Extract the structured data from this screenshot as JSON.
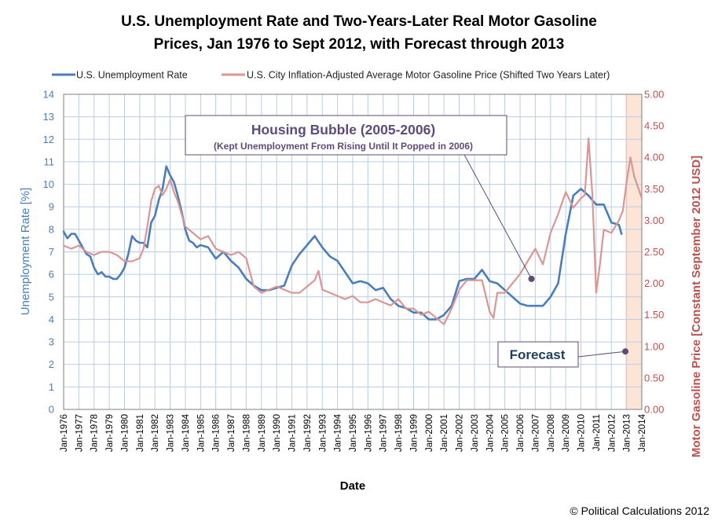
{
  "chart_data": {
    "type": "line",
    "title_lines": [
      "U.S. Unemployment Rate and Two-Years-Later Real Motor Gasoline",
      "Prices, Jan 1976 to Sept 2012, with Forecast through 2013"
    ],
    "xlabel": "Date",
    "ylabel_left": "Unemployment Rate [%]",
    "ylabel_right": "Motor Gasoline Price [Constant September 2012 USD]",
    "x_ticks": [
      "Jan-1976",
      "Jan-1977",
      "Jan-1978",
      "Jan-1979",
      "Jan-1980",
      "Jan-1981",
      "Jan-1982",
      "Jan-1983",
      "Jan-1984",
      "Jan-1985",
      "Jan-1986",
      "Jan-1987",
      "Jan-1988",
      "Jan-1989",
      "Jan-1990",
      "Jan-1991",
      "Jan-1992",
      "Jan-1993",
      "Jan-1994",
      "Jan-1995",
      "Jan-1996",
      "Jan-1997",
      "Jan-1998",
      "Jan-1999",
      "Jan-2000",
      "Jan-2001",
      "Jan-2002",
      "Jan-2003",
      "Jan-2004",
      "Jan-2005",
      "Jan-2006",
      "Jan-2007",
      "Jan-2008",
      "Jan-2009",
      "Jan-2010",
      "Jan-2011",
      "Jan-2012",
      "Jan-2013",
      "Jan-2014"
    ],
    "xlim": [
      1976,
      2014
    ],
    "y_left_ticks": [
      "0",
      "1",
      "2",
      "3",
      "4",
      "5",
      "6",
      "7",
      "8",
      "9",
      "10",
      "11",
      "12",
      "13",
      "14"
    ],
    "ylim_left": [
      0,
      14
    ],
    "y_right_ticks": [
      "0.00",
      "0.50",
      "1.00",
      "1.50",
      "2.00",
      "2.50",
      "3.00",
      "3.50",
      "4.00",
      "4.50",
      "5.00"
    ],
    "ylim_right": [
      0,
      5
    ],
    "grid": true,
    "legend_position": "top",
    "forecast_region": [
      2012.92,
      2014
    ],
    "series": [
      {
        "name": "U.S. Unemployment Rate",
        "axis": "left",
        "color": "#4a7ebb",
        "x": [
          1976.0,
          1976.25,
          1976.5,
          1976.75,
          1977.0,
          1977.25,
          1977.5,
          1977.75,
          1978.0,
          1978.25,
          1978.5,
          1978.75,
          1979.0,
          1979.25,
          1979.5,
          1979.75,
          1980.0,
          1980.25,
          1980.5,
          1980.75,
          1981.0,
          1981.25,
          1981.5,
          1981.75,
          1982.0,
          1982.25,
          1982.5,
          1982.75,
          1983.0,
          1983.25,
          1983.5,
          1983.75,
          1984.0,
          1984.25,
          1984.5,
          1984.75,
          1985.0,
          1985.5,
          1986.0,
          1986.5,
          1987.0,
          1987.5,
          1988.0,
          1988.5,
          1989.0,
          1989.5,
          1990.0,
          1990.5,
          1991.0,
          1991.5,
          1992.0,
          1992.5,
          1993.0,
          1993.5,
          1994.0,
          1994.5,
          1995.0,
          1995.5,
          1996.0,
          1996.5,
          1997.0,
          1997.5,
          1998.0,
          1998.5,
          1999.0,
          1999.5,
          2000.0,
          2000.5,
          2001.0,
          2001.5,
          2002.0,
          2002.5,
          2003.0,
          2003.5,
          2004.0,
          2004.5,
          2005.0,
          2005.5,
          2006.0,
          2006.5,
          2007.0,
          2007.5,
          2008.0,
          2008.5,
          2009.0,
          2009.5,
          2010.0,
          2010.5,
          2011.0,
          2011.5,
          2012.0,
          2012.5,
          2012.67
        ],
        "values": [
          7.9,
          7.6,
          7.8,
          7.8,
          7.5,
          7.2,
          6.9,
          6.8,
          6.3,
          6.0,
          6.1,
          5.9,
          5.9,
          5.8,
          5.8,
          6.0,
          6.3,
          6.9,
          7.7,
          7.5,
          7.4,
          7.4,
          7.2,
          8.3,
          8.6,
          9.3,
          9.8,
          10.8,
          10.4,
          10.1,
          9.5,
          8.8,
          8.0,
          7.5,
          7.4,
          7.2,
          7.3,
          7.2,
          6.7,
          7.0,
          6.6,
          6.3,
          5.8,
          5.5,
          5.3,
          5.3,
          5.4,
          5.5,
          6.4,
          6.9,
          7.3,
          7.7,
          7.2,
          6.8,
          6.6,
          6.1,
          5.6,
          5.7,
          5.6,
          5.3,
          5.4,
          4.9,
          4.6,
          4.5,
          4.3,
          4.3,
          4.0,
          4.0,
          4.2,
          4.6,
          5.7,
          5.8,
          5.8,
          6.2,
          5.7,
          5.6,
          5.3,
          5.0,
          4.7,
          4.6,
          4.6,
          4.6,
          5.0,
          5.6,
          7.8,
          9.5,
          9.8,
          9.5,
          9.1,
          9.1,
          8.3,
          8.2,
          7.8
        ]
      },
      {
        "name": "U.S. City Inflation-Adjusted  Average Motor Gasoline Price (Shifted Two Years Later)",
        "axis": "right",
        "color": "#d99694",
        "x": [
          1976.0,
          1976.5,
          1977.0,
          1977.5,
          1978.0,
          1978.5,
          1979.0,
          1979.5,
          1980.0,
          1980.5,
          1981.0,
          1981.25,
          1981.5,
          1981.75,
          1982.0,
          1982.25,
          1982.5,
          1982.75,
          1983.0,
          1983.25,
          1983.5,
          1983.75,
          1984.0,
          1984.5,
          1985.0,
          1985.5,
          1986.0,
          1986.5,
          1987.0,
          1987.5,
          1988.0,
          1988.5,
          1989.0,
          1989.5,
          1990.0,
          1990.5,
          1991.0,
          1991.5,
          1992.0,
          1992.5,
          1992.75,
          1993.0,
          1993.5,
          1994.0,
          1994.5,
          1995.0,
          1995.5,
          1996.0,
          1996.5,
          1997.0,
          1997.5,
          1998.0,
          1998.5,
          1999.0,
          1999.5,
          2000.0,
          2000.5,
          2001.0,
          2001.5,
          2002.0,
          2002.5,
          2003.0,
          2003.5,
          2004.0,
          2004.25,
          2004.5,
          2005.0,
          2005.5,
          2006.0,
          2006.5,
          2007.0,
          2007.5,
          2008.0,
          2008.5,
          2009.0,
          2009.5,
          2010.0,
          2010.25,
          2010.5,
          2010.75,
          2011.0,
          2011.25,
          2011.5,
          2012.0,
          2012.5,
          2012.75,
          2013.0,
          2013.25,
          2013.5,
          2014.0
        ],
        "values": [
          2.6,
          2.55,
          2.6,
          2.5,
          2.45,
          2.5,
          2.5,
          2.45,
          2.35,
          2.35,
          2.4,
          2.55,
          2.9,
          3.3,
          3.5,
          3.55,
          3.4,
          3.5,
          3.65,
          3.45,
          3.3,
          3.1,
          2.9,
          2.8,
          2.7,
          2.75,
          2.55,
          2.5,
          2.45,
          2.5,
          2.4,
          1.95,
          1.85,
          1.9,
          1.95,
          1.9,
          1.85,
          1.85,
          1.95,
          2.05,
          2.2,
          1.9,
          1.85,
          1.8,
          1.75,
          1.8,
          1.7,
          1.7,
          1.75,
          1.7,
          1.65,
          1.75,
          1.6,
          1.6,
          1.5,
          1.55,
          1.45,
          1.35,
          1.6,
          1.9,
          2.05,
          2.05,
          2.05,
          1.55,
          1.45,
          1.85,
          1.85,
          2.0,
          2.15,
          2.35,
          2.55,
          2.3,
          2.8,
          3.1,
          3.45,
          3.2,
          3.35,
          3.4,
          4.3,
          3.4,
          1.85,
          2.3,
          2.85,
          2.8,
          3.0,
          3.15,
          3.6,
          4.0,
          3.7,
          3.35
        ]
      }
    ],
    "annotations": [
      {
        "title": "Housing Bubble (2005-2006)",
        "subtitle": "(Kept Unemployment From Rising Until It Popped in 2006)",
        "target": {
          "x": 2006.75,
          "y": 5.8,
          "axis": "left"
        }
      },
      {
        "title": "Forecast",
        "target": {
          "x": 2012.92,
          "y": 0.92,
          "axis": "right"
        }
      }
    ],
    "credit": "© Political Calculations 2012"
  }
}
